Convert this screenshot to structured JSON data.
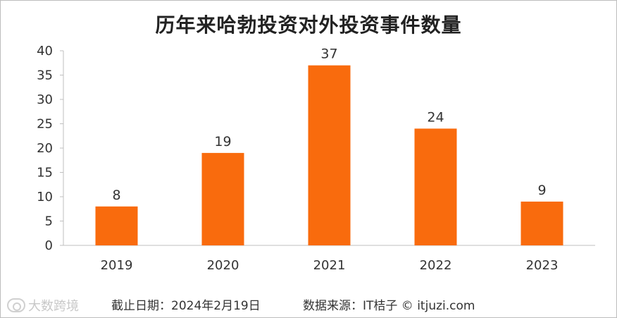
{
  "chart_data": {
    "type": "bar",
    "title": "历年来哈勃投资对外投资事件数量",
    "categories": [
      "2019",
      "2020",
      "2021",
      "2022",
      "2023"
    ],
    "values": [
      8,
      19,
      37,
      24,
      9
    ],
    "ylim": [
      0,
      40
    ],
    "yticks": [
      0,
      5,
      10,
      15,
      20,
      25,
      30,
      35,
      40
    ],
    "xlabel": "",
    "ylabel": "",
    "grid": false,
    "legend": "none",
    "bar_color": "#f96b0d"
  },
  "footer": {
    "date": "截止日期：2024年2月19日",
    "source": "数据来源：IT桔子 © itjuzi.com"
  },
  "watermark": {
    "text": "大数跨境",
    "icon": "camera-logo-icon"
  }
}
